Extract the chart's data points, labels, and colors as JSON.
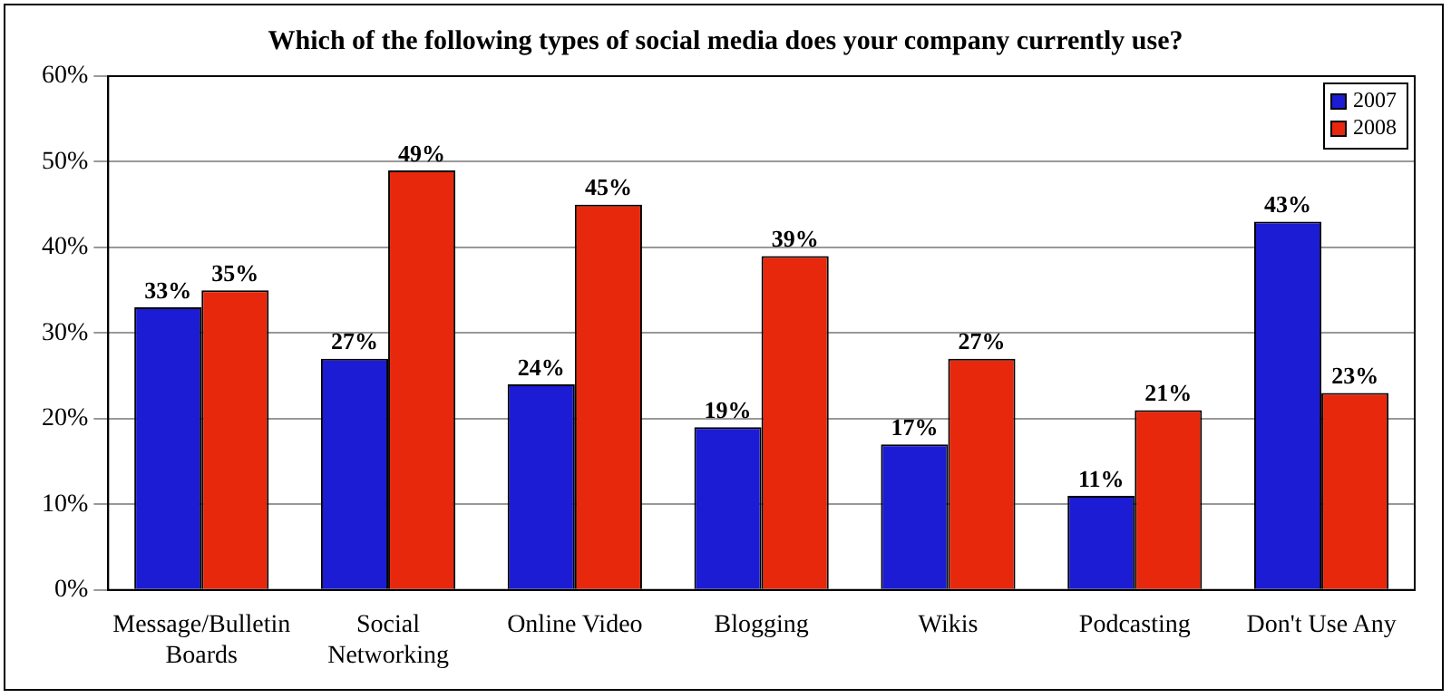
{
  "chart_data": {
    "type": "bar",
    "title": "Which of the following types of social media does your company currently use?",
    "categories": [
      "Message/Bulletin Boards",
      "Social Networking",
      "Online Video",
      "Blogging",
      "Wikis",
      "Podcasting",
      "Don't Use Any"
    ],
    "series": [
      {
        "name": "2007",
        "color": "#1c1cd4",
        "values": [
          33,
          27,
          24,
          19,
          17,
          11,
          43
        ],
        "value_labels": [
          "33%",
          "27%",
          "24%",
          "19%",
          "17%",
          "11%",
          "43%"
        ]
      },
      {
        "name": "2008",
        "color": "#e8280c",
        "values": [
          35,
          49,
          45,
          39,
          27,
          21,
          23
        ],
        "value_labels": [
          "35%",
          "49%",
          "45%",
          "39%",
          "27%",
          "21%",
          "23%"
        ]
      }
    ],
    "ylim": [
      0,
      60
    ],
    "yticks": [
      {
        "value": 0,
        "label": "0%"
      },
      {
        "value": 10,
        "label": "10%"
      },
      {
        "value": 20,
        "label": "20%"
      },
      {
        "value": 30,
        "label": "30%"
      },
      {
        "value": 40,
        "label": "40%"
      },
      {
        "value": 50,
        "label": "50%"
      },
      {
        "value": 60,
        "label": "60%"
      }
    ],
    "grid": "y",
    "legend": "top right"
  }
}
